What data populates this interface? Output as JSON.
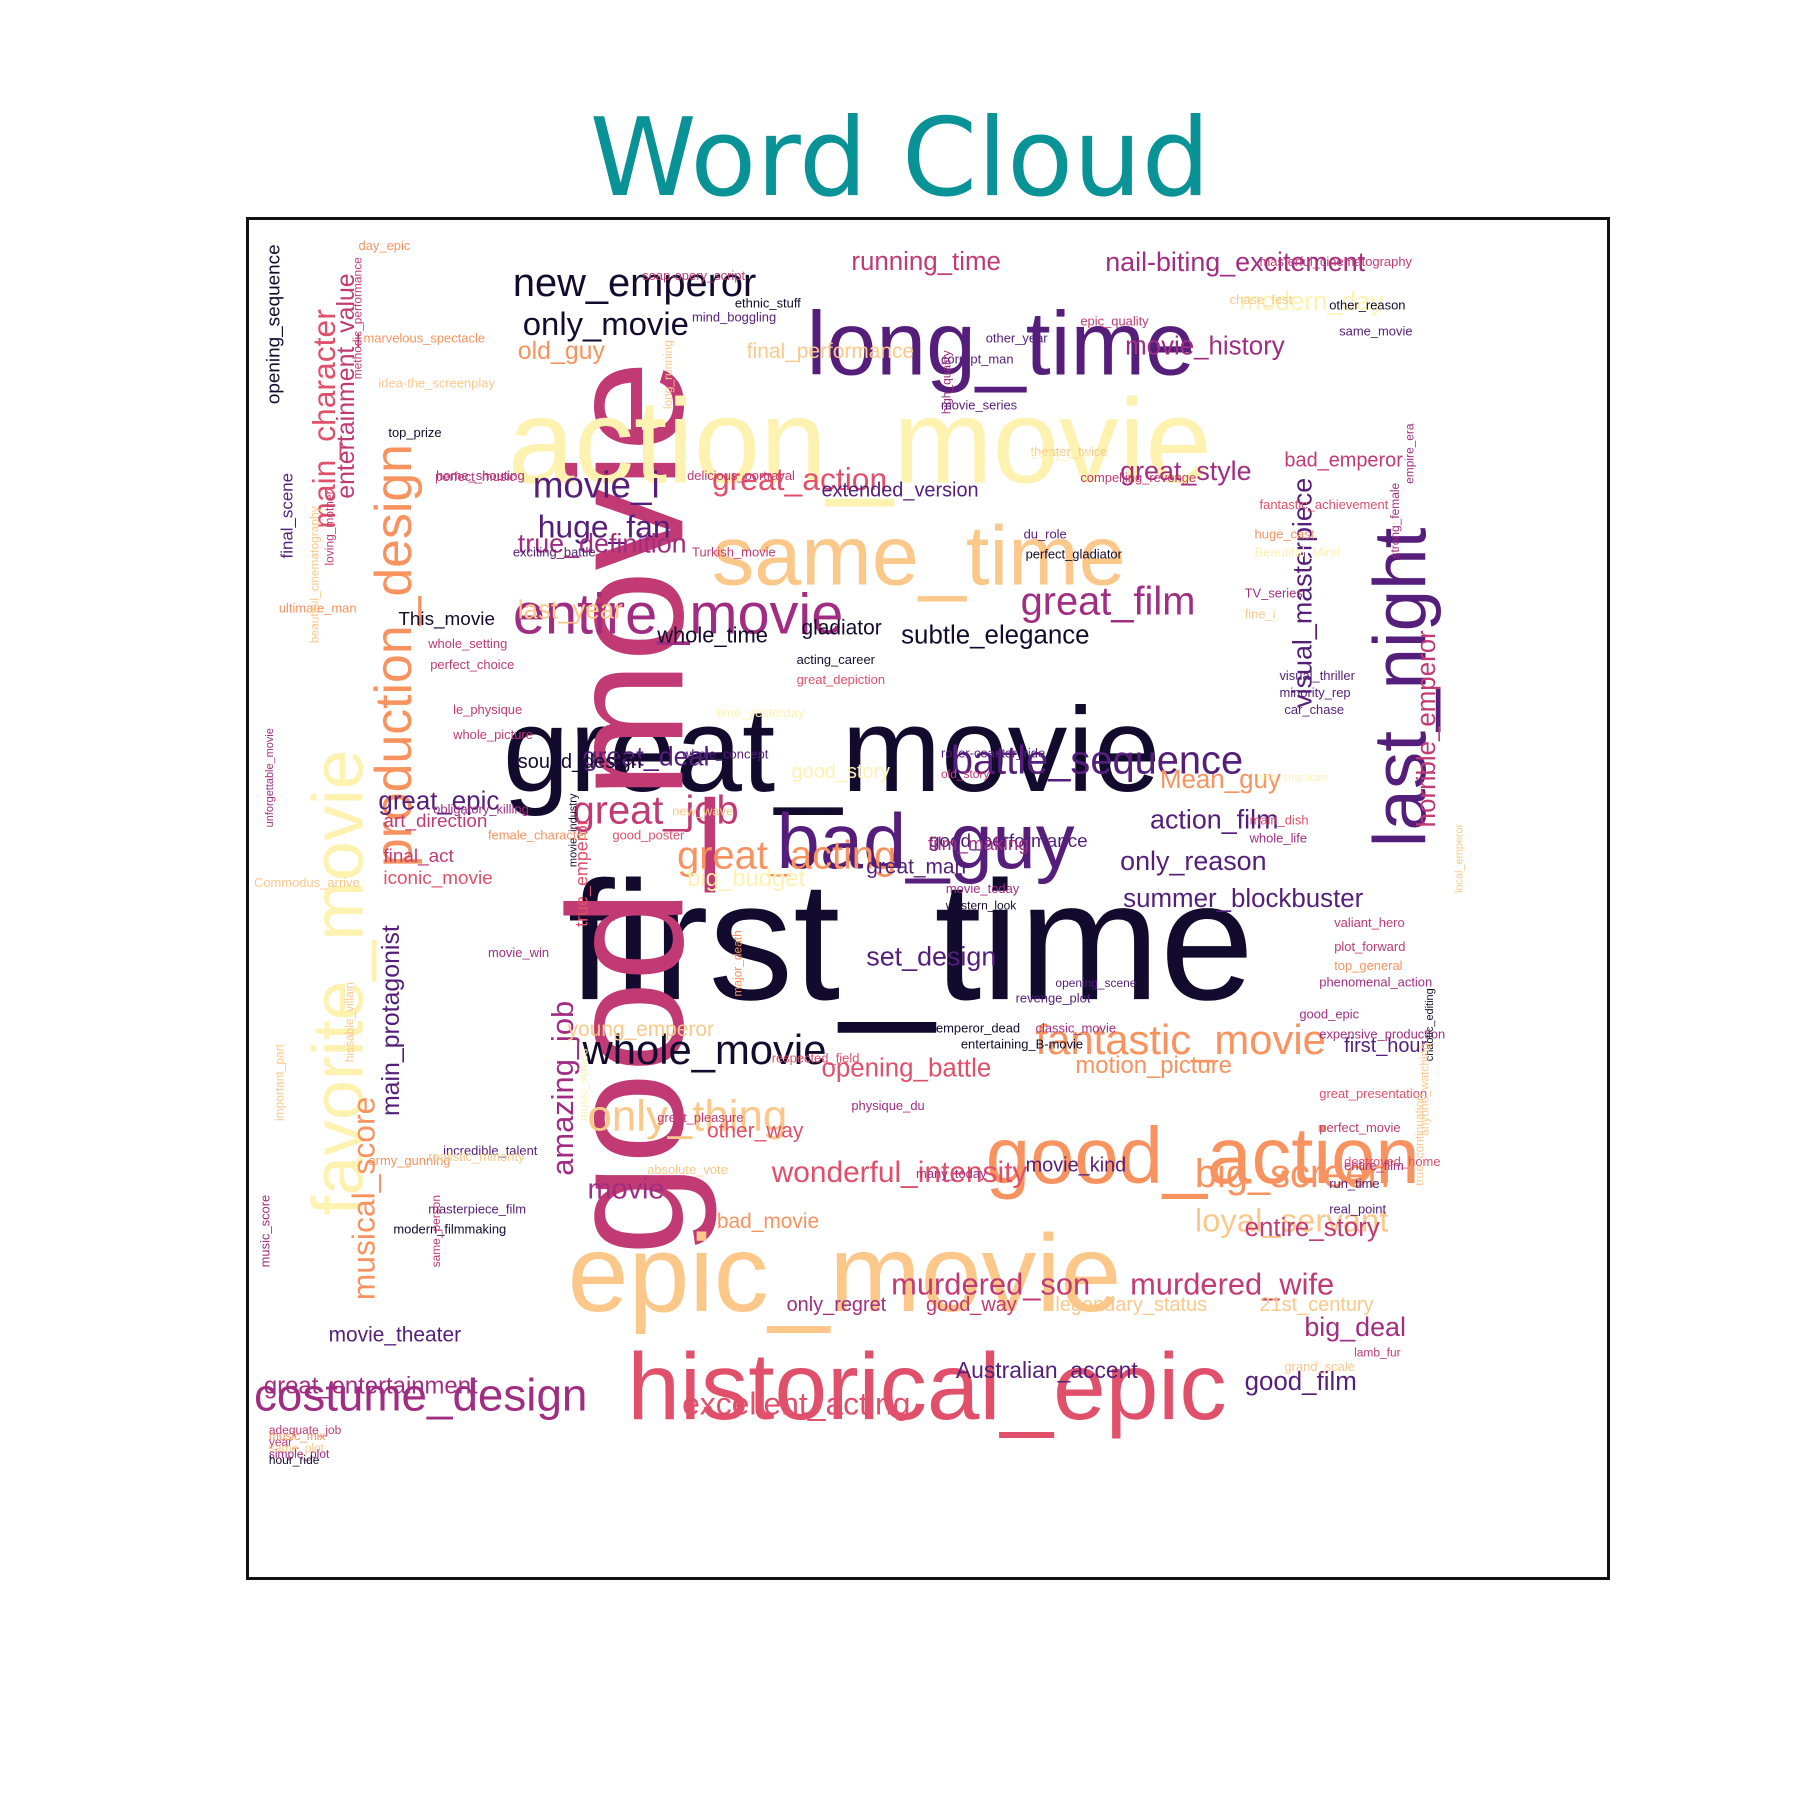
{
  "title": "Word Cloud",
  "palette": {
    "darkest": "#120b2e",
    "purple": "#541e7a",
    "magenta": "#c13a74",
    "red": "#e0506a",
    "orange": "#f8935f",
    "peach": "#fcc88a",
    "pale": "#fdf2b0"
  },
  "words": [
    {
      "text": "first_time",
      "color": "#120b2e"
    },
    {
      "text": "great_movie",
      "color": "#120b2e"
    },
    {
      "text": "good_movie",
      "color": "#c13a74"
    },
    {
      "text": "action_movie",
      "color": "#fdf2b0"
    },
    {
      "text": "epic_movie",
      "color": "#fcc88a"
    },
    {
      "text": "historical_epic",
      "color": "#e0506a"
    },
    {
      "text": "long_time",
      "color": "#541e7a"
    },
    {
      "text": "same_time",
      "color": "#fcc88a"
    },
    {
      "text": "bad_guy",
      "color": "#541e7a"
    },
    {
      "text": "good_action",
      "color": "#f8935f"
    },
    {
      "text": "last_night",
      "color": "#541e7a"
    },
    {
      "text": "favorite_movie",
      "color": "#fdf2b0"
    },
    {
      "text": "entire_movie",
      "color": "#a12d82"
    },
    {
      "text": "production_design",
      "color": "#f8935f"
    },
    {
      "text": "costume_design",
      "color": "#a12d82"
    },
    {
      "text": "whole_movie",
      "color": "#120b2e"
    },
    {
      "text": "fantastic_movie",
      "color": "#f8935f"
    },
    {
      "text": "great_film",
      "color": "#a12d82"
    },
    {
      "text": "battle_sequence",
      "color": "#541e7a"
    },
    {
      "text": "new_emperor",
      "color": "#120b2e"
    },
    {
      "text": "only_thing",
      "color": "#fcc88a"
    },
    {
      "text": "great_acting",
      "color": "#f8935f"
    },
    {
      "text": "great_job",
      "color": "#c13a74"
    },
    {
      "text": "big_screen",
      "color": "#f8935f"
    },
    {
      "text": "movie_i",
      "color": "#541e7a"
    },
    {
      "text": "huge_fan",
      "color": "#541e7a"
    },
    {
      "text": "main_character",
      "color": "#e0506a"
    },
    {
      "text": "musical_score",
      "color": "#f8935f"
    },
    {
      "text": "only_movie",
      "color": "#120b2e"
    },
    {
      "text": "great_action",
      "color": "#e0506a"
    },
    {
      "text": "excellent_acting",
      "color": "#e0506a"
    },
    {
      "text": "amazing_job",
      "color": "#a12d82"
    },
    {
      "text": "loyal_servant",
      "color": "#fcc88a"
    },
    {
      "text": "murdered_son",
      "color": "#c13a74"
    },
    {
      "text": "murdered_wife",
      "color": "#c13a74"
    },
    {
      "text": "nail-biting_excitement",
      "color": "#a12d82"
    },
    {
      "text": "visual_masterpiece",
      "color": "#541e7a"
    },
    {
      "text": "wonderful_intensity",
      "color": "#e0506a"
    },
    {
      "text": "subtle_elegance",
      "color": "#120b2e"
    },
    {
      "text": "true_definition",
      "color": "#a12d82"
    },
    {
      "text": "great_deal",
      "color": "#541e7a"
    },
    {
      "text": "great_style",
      "color": "#a12d82"
    },
    {
      "text": "horrible_emperor",
      "color": "#c13a74"
    },
    {
      "text": "action_film",
      "color": "#541e7a"
    },
    {
      "text": "only_reason",
      "color": "#541e7a"
    },
    {
      "text": "summer_blockbuster",
      "color": "#541e7a"
    },
    {
      "text": "Mean_guy",
      "color": "#f8935f"
    },
    {
      "text": "motion_picture",
      "color": "#f8935f"
    },
    {
      "text": "big_deal",
      "color": "#a12d82"
    },
    {
      "text": "movie_history",
      "color": "#a12d82"
    },
    {
      "text": "running_time",
      "color": "#c13a74"
    },
    {
      "text": "modern_day",
      "color": "#fdf2b0"
    },
    {
      "text": "old_guy",
      "color": "#f8935f"
    },
    {
      "text": "entire_story",
      "color": "#c13a74"
    },
    {
      "text": "opening_battle",
      "color": "#e0506a"
    },
    {
      "text": "entertainment_value",
      "color": "#c13a74"
    },
    {
      "text": "main_protagonist",
      "color": "#541e7a"
    },
    {
      "text": "set_design",
      "color": "#541e7a"
    },
    {
      "text": "movie",
      "color": "#a12d82"
    },
    {
      "text": "great_epic",
      "color": "#541e7a"
    },
    {
      "text": "last_year",
      "color": "#fcc88a"
    },
    {
      "text": "whole_time",
      "color": "#120b2e"
    },
    {
      "text": "gladiator",
      "color": "#120b2e"
    },
    {
      "text": "good_film",
      "color": "#541e7a"
    },
    {
      "text": "Australian_accent",
      "color": "#541e7a"
    },
    {
      "text": "good_way",
      "color": "#c13a74"
    },
    {
      "text": "only_regret",
      "color": "#a12d82"
    },
    {
      "text": "legendary_status",
      "color": "#fcc88a"
    },
    {
      "text": "21st_century",
      "color": "#fcc88a"
    },
    {
      "text": "movie_theater",
      "color": "#541e7a"
    },
    {
      "text": "great_entertainment",
      "color": "#a12d82"
    },
    {
      "text": "final_performance",
      "color": "#fcc88a"
    },
    {
      "text": "extended_version",
      "color": "#541e7a"
    },
    {
      "text": "bad_emperor",
      "color": "#c13a74"
    },
    {
      "text": "sound_design",
      "color": "#120b2e"
    },
    {
      "text": "This_movie",
      "color": "#120b2e"
    },
    {
      "text": "art_direction",
      "color": "#c13a74"
    },
    {
      "text": "final_act",
      "color": "#c13a74"
    },
    {
      "text": "iconic_movie",
      "color": "#e0506a"
    },
    {
      "text": "big_budget",
      "color": "#fdf2b0"
    },
    {
      "text": "great_man",
      "color": "#541e7a"
    },
    {
      "text": "good_performance",
      "color": "#541e7a"
    },
    {
      "text": "film_making",
      "color": "#a12d82"
    },
    {
      "text": "other_way",
      "color": "#e0506a"
    },
    {
      "text": "bad_movie",
      "color": "#f8935f"
    },
    {
      "text": "movie_kind",
      "color": "#541e7a"
    },
    {
      "text": "first_hour",
      "color": "#541e7a"
    },
    {
      "text": "good_story",
      "color": "#fdf2b0"
    },
    {
      "text": "young_emperor",
      "color": "#fcc88a"
    },
    {
      "text": "opening_sequence",
      "color": "#120b2e"
    },
    {
      "text": "final_scene",
      "color": "#541e7a"
    },
    {
      "text": "true_emperor",
      "color": "#e0506a"
    },
    {
      "text": "day_epic",
      "color": "#f8935f"
    },
    {
      "text": "soap-opery_script",
      "color": "#c13a74"
    },
    {
      "text": "ethnic_stuff",
      "color": "#120b2e"
    },
    {
      "text": "mind_boggling",
      "color": "#541e7a"
    },
    {
      "text": "masterful_cinematography",
      "color": "#c13a74"
    },
    {
      "text": "chase_fest",
      "color": "#fcc88a"
    },
    {
      "text": "other_reason",
      "color": "#120b2e"
    },
    {
      "text": "epic_quality",
      "color": "#c13a74"
    },
    {
      "text": "other_year",
      "color": "#541e7a"
    },
    {
      "text": "same_movie",
      "color": "#541e7a"
    },
    {
      "text": "marvelous_spectacle",
      "color": "#f8935f"
    },
    {
      "text": "methodic_performance",
      "color": "#c13a74"
    },
    {
      "text": "idea-the_screenplay",
      "color": "#fcc88a"
    },
    {
      "text": "corrupt_man",
      "color": "#541e7a"
    },
    {
      "text": "high_quality",
      "color": "#a12d82"
    },
    {
      "text": "long_running",
      "color": "#fcc88a"
    },
    {
      "text": "movie_series",
      "color": "#541e7a"
    },
    {
      "text": "top_prize",
      "color": "#120b2e"
    },
    {
      "text": "theater_twice",
      "color": "#fcc88a"
    },
    {
      "text": "Every_time",
      "color": "#fdf2b0"
    },
    {
      "text": "home_shouting",
      "color": "#a12d82"
    },
    {
      "text": "perfect_music",
      "color": "#c13a74"
    },
    {
      "text": "delicious_portrayal",
      "color": "#c13a74"
    },
    {
      "text": "compelling_revenge",
      "color": "#c13a74"
    },
    {
      "text": "du_role",
      "color": "#541e7a"
    },
    {
      "text": "strong_female",
      "color": "#a12d82"
    },
    {
      "text": "empire_era",
      "color": "#a12d82"
    },
    {
      "text": "exciting_battle",
      "color": "#541e7a"
    },
    {
      "text": "Turkish_movie",
      "color": "#c13a74"
    },
    {
      "text": "Beautiful_Mind",
      "color": "#fdf2b0"
    },
    {
      "text": "perfect_gladiator",
      "color": "#120b2e"
    },
    {
      "text": "loving_mother",
      "color": "#c13a74"
    },
    {
      "text": "huge_cast",
      "color": "#f8935f"
    },
    {
      "text": "fantastic_achievement",
      "color": "#e0506a"
    },
    {
      "text": "ultimate_man",
      "color": "#f8935f"
    },
    {
      "text": "TV_series",
      "color": "#a12d82"
    },
    {
      "text": "fine_i",
      "color": "#fcc88a"
    },
    {
      "text": "beautiful_cinematography",
      "color": "#fcc88a"
    },
    {
      "text": "whole_setting",
      "color": "#c13a74"
    },
    {
      "text": "perfect_choice",
      "color": "#c13a74"
    },
    {
      "text": "acting_career",
      "color": "#120b2e"
    },
    {
      "text": "great_depiction",
      "color": "#e0506a"
    },
    {
      "text": "le_physique",
      "color": "#c13a74"
    },
    {
      "text": "whole_picture",
      "color": "#c13a74"
    },
    {
      "text": "visual_thriller",
      "color": "#541e7a"
    },
    {
      "text": "minority_rep",
      "color": "#541e7a"
    },
    {
      "text": "car_chase",
      "color": "#541e7a"
    },
    {
      "text": "time_yesterday",
      "color": "#fdf2b0"
    },
    {
      "text": "whole_concept",
      "color": "#541e7a"
    },
    {
      "text": "roller-coaster_ride",
      "color": "#541e7a"
    },
    {
      "text": "unforgettable_movie",
      "color": "#a12d82"
    },
    {
      "text": "title_character",
      "color": "#fdf2b0"
    },
    {
      "text": "old_story",
      "color": "#c13a74"
    },
    {
      "text": "obligatory_killing",
      "color": "#a12d82"
    },
    {
      "text": "new_wave",
      "color": "#fcc88a"
    },
    {
      "text": "movie_industry",
      "color": "#120b2e"
    },
    {
      "text": "good_poster",
      "color": "#e0506a"
    },
    {
      "text": "whole_life",
      "color": "#a12d82"
    },
    {
      "text": "female_character",
      "color": "#f8935f"
    },
    {
      "text": "main_dish",
      "color": "#e0506a"
    },
    {
      "text": "Commodus_arrive",
      "color": "#fcc88a"
    },
    {
      "text": "movie_today",
      "color": "#a12d82"
    },
    {
      "text": "western_look",
      "color": "#120b2e"
    },
    {
      "text": "valiant_hero",
      "color": "#c13a74"
    },
    {
      "text": "local_emperor",
      "color": "#fcc88a"
    },
    {
      "text": "top_general",
      "color": "#f8935f"
    },
    {
      "text": "plot_forward",
      "color": "#c13a74"
    },
    {
      "text": "movie_win",
      "color": "#a12d82"
    },
    {
      "text": "opening_scene",
      "color": "#541e7a"
    },
    {
      "text": "major_death",
      "color": "#f8935f"
    },
    {
      "text": "phenomenal_action",
      "color": "#a12d82"
    },
    {
      "text": "revenge_plot",
      "color": "#541e7a"
    },
    {
      "text": "good_epic",
      "color": "#a12d82"
    },
    {
      "text": "hissable_villain",
      "color": "#fcc88a"
    },
    {
      "text": "classic_movie",
      "color": "#a12d82"
    },
    {
      "text": "emperor_dead",
      "color": "#120b2e"
    },
    {
      "text": "expensive_production",
      "color": "#a12d82"
    },
    {
      "text": "respected_field",
      "color": "#e0506a"
    },
    {
      "text": "entertaining_B-movie",
      "color": "#120b2e"
    },
    {
      "text": "chaotic_editing",
      "color": "#120b2e"
    },
    {
      "text": "physique_du",
      "color": "#a12d82"
    },
    {
      "text": "great_presentation",
      "color": "#e0506a"
    },
    {
      "text": "army_gunning",
      "color": "#f8935f"
    },
    {
      "text": "important_part",
      "color": "#fcc88a"
    },
    {
      "text": "incredible_talent",
      "color": "#541e7a"
    },
    {
      "text": "great_pleasure",
      "color": "#c13a74"
    },
    {
      "text": "absolute_vote",
      "color": "#fcc88a"
    },
    {
      "text": "music_videos",
      "color": "#fdf2b0"
    },
    {
      "text": "perfect_movie",
      "color": "#c13a74"
    },
    {
      "text": "entire_film",
      "color": "#a12d82"
    },
    {
      "text": "destroyed_home",
      "color": "#e0506a"
    },
    {
      "text": "many_today",
      "color": "#a12d82"
    },
    {
      "text": "true_continuation",
      "color": "#fcc88a"
    },
    {
      "text": "realistic_minority",
      "color": "#fcc88a"
    },
    {
      "text": "run_time",
      "color": "#541e7a"
    },
    {
      "text": "real_point",
      "color": "#541e7a"
    },
    {
      "text": "masterpiece_film",
      "color": "#541e7a"
    },
    {
      "text": "anyone_watching",
      "color": "#fcc88a"
    },
    {
      "text": "modern_filmmaking",
      "color": "#120b2e"
    },
    {
      "text": "music_score",
      "color": "#a12d82"
    },
    {
      "text": "same_person",
      "color": "#c13a74"
    },
    {
      "text": "lamb_fur",
      "color": "#c13a74"
    },
    {
      "text": "grand_scale",
      "color": "#fcc88a"
    },
    {
      "text": "adequate_job",
      "color": "#c13a74"
    },
    {
      "text": "music_mix",
      "color": "#f8935f"
    },
    {
      "text": "year_",
      "color": "#c13a74"
    },
    {
      "text": "same_plot",
      "color": "#fcc88a"
    },
    {
      "text": "simple_plot",
      "color": "#a12d82"
    },
    {
      "text": "hour_ride",
      "color": "#120b2e"
    }
  ]
}
